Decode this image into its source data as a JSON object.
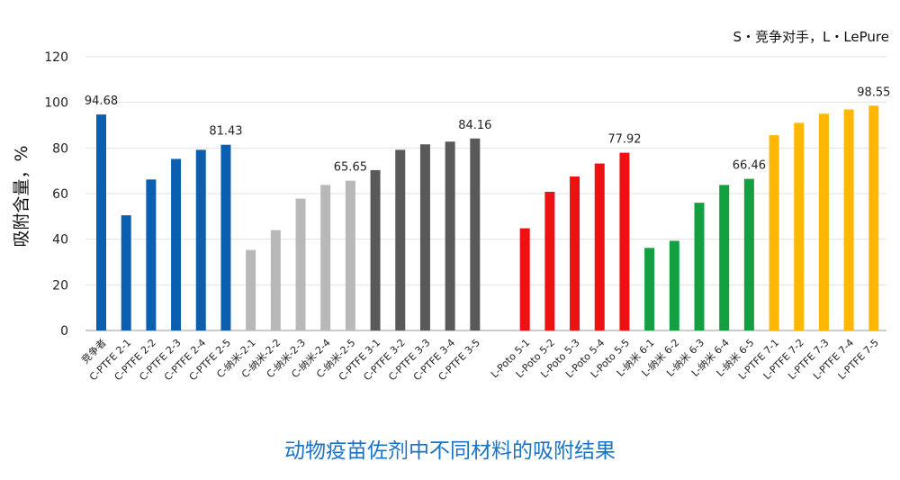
{
  "chart_data": {
    "type": "bar",
    "title": "动物疫苗佐剂中不同材料的吸附结果",
    "note": "S・竞争对手，L・LePure",
    "ylabel": "吸附含量，%",
    "xlabel": "",
    "ylim": [
      0,
      120
    ],
    "yticks": [
      "0",
      "20",
      "40",
      "60",
      "80",
      "100",
      "120"
    ],
    "grid": true,
    "categories": [
      "竞争者",
      "C-PTFE 2-1",
      "C-PTFE 2-2",
      "C-PTFE 2-3",
      "C-PTFE 2-4",
      "C-PTFE 2-5",
      "C-纳米-2-1",
      "C-纳米-2-2",
      "C-纳米-2-3",
      "C-纳米-2-4",
      "C-纳米-2-5",
      "C-PTFE 3-1",
      "C-PTFE 3-2",
      "C-PTFE 3-3",
      "C-PTFE 3-4",
      "C-PTFE 3-5",
      "",
      "L-Poto 5-1",
      "L-Poto 5-2",
      "L-Poto 5-3",
      "L-Poto 5-4",
      "L-Poto 5-5",
      "L-纳米 6-1",
      "L-纳米 6-2",
      "L-纳米 6-3",
      "L-纳米 6-4",
      "L-纳米 6-5",
      "L-PTFE 7-1",
      "L-PTFE 7-2",
      "L-PTFE 7-3",
      "L-PTFE 7-4",
      "L-PTFE 7-5"
    ],
    "values": [
      94.68,
      50.5,
      66.2,
      75.2,
      79.2,
      81.43,
      35.3,
      44.0,
      57.8,
      63.8,
      65.65,
      70.3,
      79.2,
      81.6,
      82.8,
      84.16,
      null,
      44.8,
      60.8,
      67.5,
      73.2,
      77.92,
      36.2,
      39.3,
      56.0,
      63.8,
      66.46,
      85.6,
      91.0,
      95.0,
      96.9,
      98.55
    ],
    "colors": [
      "#0b5fb0",
      "#0b5fb0",
      "#0b5fb0",
      "#0b5fb0",
      "#0b5fb0",
      "#0b5fb0",
      "#b8b8b8",
      "#b8b8b8",
      "#b8b8b8",
      "#b8b8b8",
      "#b8b8b8",
      "#595959",
      "#595959",
      "#595959",
      "#595959",
      "#595959",
      "#ffffff",
      "#ee1111",
      "#ee1111",
      "#ee1111",
      "#ee1111",
      "#ee1111",
      "#12a040",
      "#12a040",
      "#12a040",
      "#12a040",
      "#12a040",
      "#ffb703",
      "#ffb703",
      "#ffb703",
      "#ffb703",
      "#ffb703"
    ],
    "data_labels": [
      "94.68",
      "",
      "",
      "",
      "",
      "81.43",
      "",
      "",
      "",
      "",
      "65.65",
      "",
      "",
      "",
      "",
      "84.16",
      "",
      "",
      "",
      "",
      "",
      "77.92",
      "",
      "",
      "",
      "",
      "66.46",
      "",
      "",
      "",
      "",
      "98.55"
    ]
  }
}
